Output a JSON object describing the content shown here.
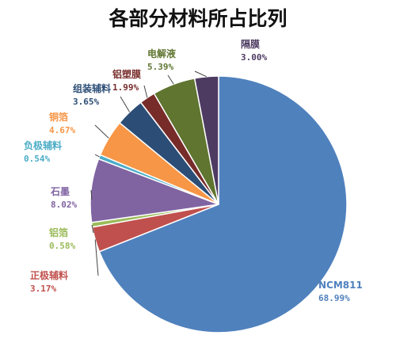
{
  "chart_data": {
    "type": "pie",
    "title": "各部分材料所占比列",
    "slices": [
      {
        "label": "NCM811",
        "value": 68.99,
        "value_label": "68.99%",
        "color": "#4F81BD"
      },
      {
        "label": "正极辅料",
        "value": 3.17,
        "value_label": "3.17%",
        "color": "#C0504D"
      },
      {
        "label": "铝箔",
        "value": 0.58,
        "value_label": "0.58%",
        "color": "#9BBB59"
      },
      {
        "label": "石墨",
        "value": 8.02,
        "value_label": "8.02%",
        "color": "#8064A2"
      },
      {
        "label": "负极辅料",
        "value": 0.54,
        "value_label": "0.54%",
        "color": "#4BACC6"
      },
      {
        "label": "铜箔",
        "value": 4.67,
        "value_label": "4.67%",
        "color": "#F79646"
      },
      {
        "label": "组装辅料",
        "value": 3.65,
        "value_label": "3.65%",
        "color": "#2C4D75"
      },
      {
        "label": "铝塑膜",
        "value": 1.99,
        "value_label": "1.99%",
        "color": "#772C2A"
      },
      {
        "label": "电解液",
        "value": 5.39,
        "value_label": "5.39%",
        "color": "#5F7530"
      },
      {
        "label": "隔膜",
        "value": 3.0,
        "value_label": "3.00%",
        "color": "#4D3B62"
      }
    ],
    "legend": "none",
    "data_labels": "outside with leader lines"
  }
}
